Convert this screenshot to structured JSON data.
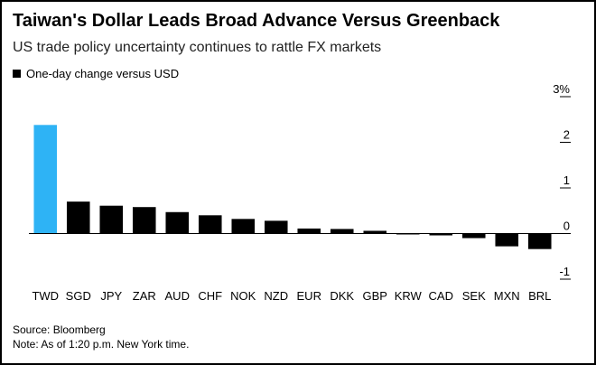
{
  "chart_data": {
    "type": "bar",
    "title": "Taiwan's Dollar Leads Broad Advance Versus Greenback",
    "subtitle": "US trade policy uncertainty continues to rattle FX markets",
    "legend": [
      {
        "name": "One-day change versus USD",
        "color": "#000000"
      }
    ],
    "legend_position": "top-left",
    "categories": [
      "TWD",
      "SGD",
      "JPY",
      "ZAR",
      "AUD",
      "CHF",
      "NOK",
      "NZD",
      "EUR",
      "DKK",
      "GBP",
      "KRW",
      "CAD",
      "SEK",
      "MXN",
      "BRL"
    ],
    "series": [
      {
        "name": "One-day change versus USD",
        "values": [
          2.38,
          0.7,
          0.61,
          0.58,
          0.47,
          0.4,
          0.32,
          0.28,
          0.11,
          0.1,
          0.06,
          -0.02,
          -0.04,
          -0.1,
          -0.28,
          -0.34
        ]
      }
    ],
    "highlight": {
      "category": "TWD",
      "color": "#2eb3f5"
    },
    "bar_color": "#000000",
    "ylim": [
      -1,
      3
    ],
    "yticks": [
      {
        "value": 3,
        "label": "3%"
      },
      {
        "value": 2,
        "label": "2"
      },
      {
        "value": 1,
        "label": "1"
      },
      {
        "value": 0,
        "label": "0"
      },
      {
        "value": -1,
        "label": "-1"
      }
    ],
    "y_axis_position": "right",
    "grid": false
  },
  "footer": {
    "source": "Source: Bloomberg",
    "note": "Note: As of 1:20 p.m. New York time."
  }
}
